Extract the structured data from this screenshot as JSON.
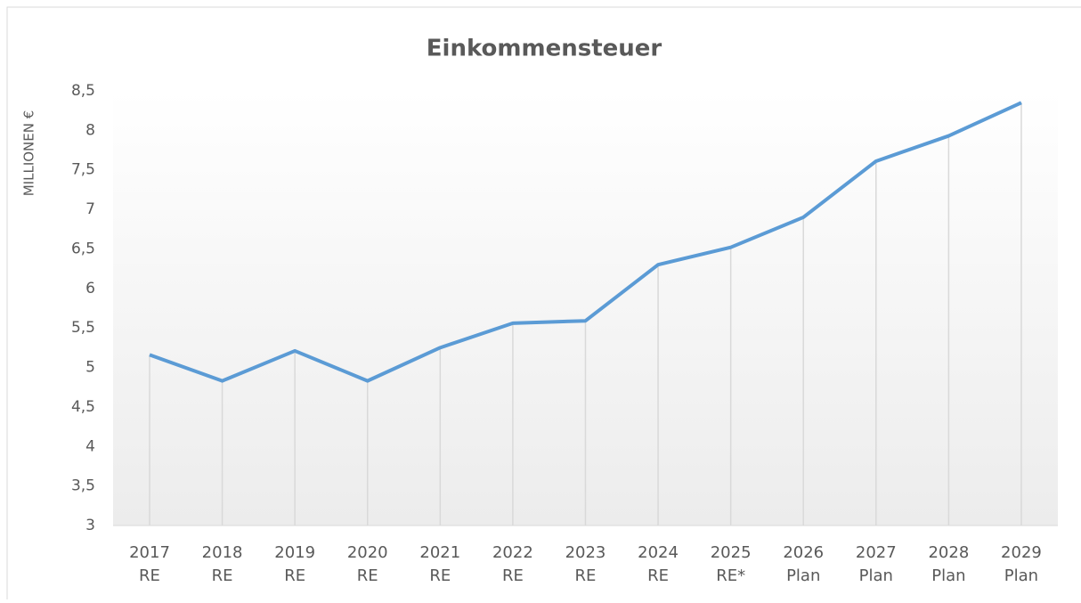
{
  "chart_data": {
    "type": "line",
    "title": "Einkommensteuer",
    "y_label": "MILLIONEN €",
    "categories": [
      [
        "2017",
        "RE"
      ],
      [
        "2018",
        "RE"
      ],
      [
        "2019",
        "RE"
      ],
      [
        "2020",
        "RE"
      ],
      [
        "2021",
        "RE"
      ],
      [
        "2022",
        "RE"
      ],
      [
        "2023",
        "RE"
      ],
      [
        "2024",
        "RE"
      ],
      [
        "2025",
        "RE*"
      ],
      [
        "2026",
        "Plan"
      ],
      [
        "2027",
        "Plan"
      ],
      [
        "2028",
        "Plan"
      ],
      [
        "2029",
        "Plan"
      ]
    ],
    "values": [
      5.16,
      4.83,
      5.21,
      4.83,
      5.25,
      5.56,
      5.59,
      6.3,
      6.52,
      6.9,
      7.61,
      7.93,
      8.35
    ],
    "color": "#5b9bd5",
    "ylim": [
      3,
      8.5
    ],
    "yticks": [
      3,
      {
        "value": 3.5,
        "label": "3,5"
      },
      4,
      {
        "value": 4.5,
        "label": "4,5"
      },
      5,
      {
        "value": 5.5,
        "label": "5,5"
      },
      6,
      {
        "value": 6.5,
        "label": "6,5"
      },
      7,
      {
        "value": 7.5,
        "label": "7,5"
      },
      8,
      {
        "value": 8.5,
        "label": "8,5"
      }
    ],
    "drop_lines": true
  }
}
